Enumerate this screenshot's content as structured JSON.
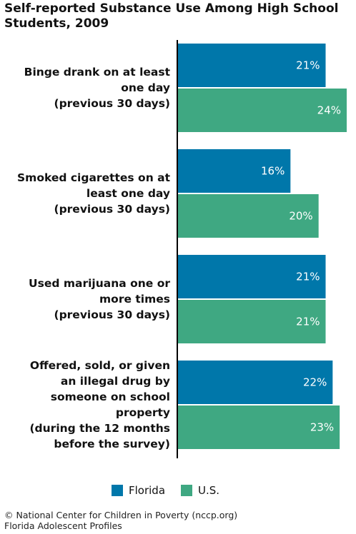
{
  "title": "Self-reported Substance Use Among High School Students, 2009",
  "colors": {
    "florida": "#0077aa",
    "us": "#3fa882"
  },
  "legend": [
    {
      "label": "Florida",
      "color": "#0077aa"
    },
    {
      "label": "U.S.",
      "color": "#3fa882"
    }
  ],
  "footer": {
    "line1": "© National Center for Children in Poverty (nccp.org)",
    "line2": "Florida Adolescent Profiles"
  },
  "chart_data": {
    "type": "bar",
    "orientation": "horizontal",
    "categories": [
      "Binge drank on at least\none day\n(previous 30 days)",
      "Smoked cigarettes on at\nleast one day\n(previous 30 days)",
      "Used marijuana one or\nmore times\n(previous 30 days)",
      "Offered, sold, or given\nan illegal drug by\nsomeone on school\nproperty\n(during the 12 months\nbefore the survey)"
    ],
    "series": [
      {
        "name": "Florida",
        "values": [
          21,
          16,
          21,
          22
        ],
        "labels": [
          "21%",
          "16%",
          "21%",
          "22%"
        ]
      },
      {
        "name": "U.S.",
        "values": [
          24,
          20,
          21,
          23
        ],
        "labels": [
          "24%",
          "20%",
          "21%",
          "23%"
        ]
      }
    ],
    "xlim": [
      0,
      24
    ],
    "unit": "%",
    "legend_position": "bottom",
    "grid": false
  }
}
